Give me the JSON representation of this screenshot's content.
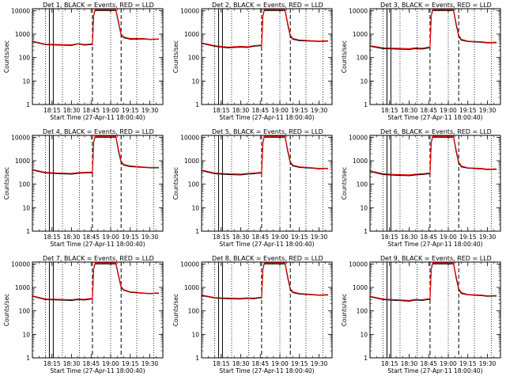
{
  "chart_data": {
    "type": "line",
    "y_log_scale": true,
    "ylim": [
      1,
      12000
    ],
    "ylabel": "Counts/sec",
    "xlabel": "Start Time (27-Apr-11 18:00:40)",
    "x_tick_labels": [
      "18:15",
      "18:30",
      "18:45",
      "19:00",
      "19:15",
      "19:30"
    ],
    "x_tick_minutes": [
      15,
      30,
      45,
      60,
      75,
      90
    ],
    "xlim_minutes": [
      0,
      100
    ],
    "y_tick_labels": [
      "1",
      "10",
      "100",
      "1000",
      "10000"
    ],
    "y_tick_values": [
      1,
      10,
      100,
      1000,
      10000
    ],
    "grid": false,
    "colors": {
      "events": "#000000",
      "lld": "#ff0000"
    },
    "markers": {
      "dotted_lines_minutes": [
        10,
        23,
        36,
        60,
        80,
        93
      ],
      "solid_lines_minutes": [
        13,
        16
      ],
      "dashed_lines_minutes": [
        46,
        68
      ]
    },
    "panels": [
      {
        "title": "Det 1, BLACK = Events, RED = LLD",
        "series": [
          {
            "name": "BLACK = Events",
            "x": [
              0,
              10,
              20,
              30,
              35,
              40,
              45,
              46,
              47,
              48,
              55,
              60,
              64,
              66,
              68,
              70,
              75,
              85,
              90,
              95,
              97
            ],
            "y": [
              480,
              350,
              340,
              330,
              380,
              340,
              360,
              350,
              6000,
              10000,
              10000,
              10000,
              10000,
              3000,
              900,
              700,
              600,
              620,
              580,
              600,
              600
            ]
          },
          {
            "name": "RED = LLD",
            "x": [
              0,
              10,
              20,
              30,
              35,
              40,
              45,
              46,
              47,
              48,
              55,
              60,
              64,
              66,
              68,
              70,
              75,
              85,
              90,
              95,
              97
            ],
            "y": [
              500,
              370,
              360,
              350,
              390,
              360,
              380,
              370,
              6500,
              11000,
              11000,
              11000,
              11000,
              3500,
              1000,
              750,
              650,
              650,
              600,
              620,
              620
            ]
          }
        ]
      },
      {
        "title": "Det 2, BLACK = Events, RED = LLD",
        "series": [
          {
            "name": "BLACK = Events",
            "x": [
              0,
              10,
              20,
              30,
              35,
              40,
              45,
              46,
              47,
              48,
              55,
              60,
              64,
              66,
              68,
              70,
              75,
              85,
              90,
              95,
              97
            ],
            "y": [
              400,
              300,
              260,
              280,
              270,
              300,
              320,
              310,
              6000,
              10000,
              10000,
              10000,
              10000,
              2500,
              800,
              600,
              520,
              500,
              480,
              500,
              500
            ]
          },
          {
            "name": "RED = LLD",
            "x": [
              0,
              10,
              20,
              30,
              35,
              40,
              45,
              46,
              47,
              48,
              55,
              60,
              64,
              66,
              68,
              70,
              75,
              85,
              90,
              95,
              97
            ],
            "y": [
              420,
              320,
              280,
              300,
              290,
              320,
              340,
              330,
              6500,
              11000,
              11000,
              11000,
              11000,
              3000,
              900,
              650,
              560,
              520,
              500,
              520,
              520
            ]
          }
        ]
      },
      {
        "title": "Det 3, BLACK = Events, RED = LLD",
        "series": [
          {
            "name": "BLACK = Events",
            "x": [
              0,
              10,
              20,
              30,
              35,
              40,
              45,
              46,
              47,
              48,
              55,
              60,
              64,
              66,
              68,
              70,
              75,
              85,
              90,
              95,
              97
            ],
            "y": [
              300,
              240,
              230,
              220,
              240,
              230,
              260,
              250,
              6000,
              10000,
              10000,
              10000,
              10000,
              2500,
              800,
              550,
              480,
              450,
              420,
              430,
              430
            ]
          },
          {
            "name": "RED = LLD",
            "x": [
              0,
              10,
              20,
              30,
              35,
              40,
              45,
              46,
              47,
              48,
              55,
              60,
              64,
              66,
              68,
              70,
              75,
              85,
              90,
              95,
              97
            ],
            "y": [
              320,
              260,
              250,
              240,
              260,
              250,
              280,
              270,
              6500,
              11000,
              11000,
              11000,
              11000,
              3000,
              900,
              600,
              500,
              470,
              440,
              450,
              450
            ]
          }
        ]
      },
      {
        "title": "Det 4, BLACK = Events, RED = LLD",
        "series": [
          {
            "name": "BLACK = Events",
            "x": [
              0,
              10,
              20,
              30,
              35,
              40,
              45,
              46,
              47,
              48,
              55,
              60,
              64,
              66,
              68,
              70,
              75,
              85,
              90,
              95,
              97
            ],
            "y": [
              400,
              300,
              280,
              270,
              290,
              300,
              310,
              300,
              6000,
              10000,
              10000,
              10000,
              10000,
              2500,
              850,
              650,
              560,
              520,
              500,
              500,
              500
            ]
          },
          {
            "name": "RED = LLD",
            "x": [
              0,
              10,
              20,
              30,
              35,
              40,
              45,
              46,
              47,
              48,
              55,
              60,
              64,
              66,
              68,
              70,
              75,
              85,
              90,
              95,
              97
            ],
            "y": [
              420,
              320,
              300,
              290,
              310,
              320,
              330,
              320,
              6500,
              11000,
              11000,
              11000,
              11000,
              3000,
              950,
              700,
              600,
              540,
              520,
              520,
              520
            ]
          }
        ]
      },
      {
        "title": "Det 5, BLACK = Events, RED = LLD",
        "series": [
          {
            "name": "BLACK = Events",
            "x": [
              0,
              10,
              20,
              30,
              35,
              40,
              45,
              46,
              47,
              48,
              55,
              60,
              64,
              66,
              68,
              70,
              75,
              85,
              90,
              95,
              97
            ],
            "y": [
              380,
              280,
              260,
              250,
              270,
              280,
              300,
              290,
              6000,
              10000,
              10000,
              10000,
              10000,
              2500,
              800,
              600,
              520,
              480,
              450,
              460,
              460
            ]
          },
          {
            "name": "RED = LLD",
            "x": [
              0,
              10,
              20,
              30,
              35,
              40,
              45,
              46,
              47,
              48,
              55,
              60,
              64,
              66,
              68,
              70,
              75,
              85,
              90,
              95,
              97
            ],
            "y": [
              400,
              300,
              280,
              270,
              290,
              300,
              320,
              310,
              6500,
              11000,
              11000,
              11000,
              11000,
              3000,
              900,
              650,
              550,
              500,
              470,
              480,
              480
            ]
          }
        ]
      },
      {
        "title": "Det 6, BLACK = Events, RED = LLD",
        "series": [
          {
            "name": "BLACK = Events",
            "x": [
              0,
              10,
              20,
              30,
              35,
              40,
              45,
              46,
              47,
              48,
              55,
              60,
              64,
              66,
              68,
              70,
              75,
              85,
              90,
              95,
              97
            ],
            "y": [
              350,
              260,
              240,
              230,
              250,
              260,
              280,
              270,
              6000,
              10000,
              10000,
              10000,
              10000,
              2500,
              800,
              550,
              480,
              450,
              420,
              430,
              430
            ]
          },
          {
            "name": "RED = LLD",
            "x": [
              0,
              10,
              20,
              30,
              35,
              40,
              45,
              46,
              47,
              48,
              55,
              60,
              64,
              66,
              68,
              70,
              75,
              85,
              90,
              95,
              97
            ],
            "y": [
              370,
              280,
              260,
              250,
              270,
              280,
              300,
              290,
              6500,
              11000,
              11000,
              11000,
              11000,
              3000,
              900,
              600,
              500,
              470,
              440,
              450,
              450
            ]
          }
        ]
      },
      {
        "title": "Det 7, BLACK = Events, RED = LLD",
        "series": [
          {
            "name": "BLACK = Events",
            "x": [
              0,
              10,
              20,
              30,
              35,
              40,
              45,
              46,
              47,
              48,
              55,
              60,
              64,
              66,
              68,
              70,
              75,
              85,
              90,
              95,
              97
            ],
            "y": [
              420,
              300,
              290,
              280,
              300,
              290,
              320,
              310,
              6000,
              10000,
              10000,
              10000,
              10000,
              3000,
              1000,
              750,
              620,
              560,
              540,
              560,
              560
            ]
          },
          {
            "name": "RED = LLD",
            "x": [
              0,
              10,
              20,
              30,
              35,
              40,
              45,
              46,
              47,
              48,
              55,
              60,
              64,
              66,
              68,
              70,
              75,
              85,
              90,
              95,
              97
            ],
            "y": [
              440,
              320,
              310,
              300,
              320,
              310,
              340,
              330,
              6500,
              11000,
              11000,
              11000,
              11000,
              3500,
              1100,
              800,
              650,
              580,
              560,
              580,
              580
            ]
          }
        ]
      },
      {
        "title": "Det 8, BLACK = Events, RED = LLD",
        "series": [
          {
            "name": "BLACK = Events",
            "x": [
              0,
              10,
              20,
              30,
              35,
              40,
              45,
              46,
              47,
              48,
              55,
              60,
              64,
              66,
              68,
              70,
              75,
              85,
              90,
              95,
              97
            ],
            "y": [
              450,
              350,
              330,
              320,
              340,
              330,
              360,
              350,
              6000,
              10000,
              10000,
              10000,
              10000,
              2500,
              800,
              600,
              520,
              480,
              460,
              470,
              470
            ]
          },
          {
            "name": "RED = LLD",
            "x": [
              0,
              10,
              20,
              30,
              35,
              40,
              45,
              46,
              47,
              48,
              55,
              60,
              64,
              66,
              68,
              70,
              75,
              85,
              90,
              95,
              97
            ],
            "y": [
              470,
              370,
              350,
              340,
              360,
              350,
              380,
              370,
              6500,
              11000,
              11000,
              11000,
              11000,
              3000,
              900,
              650,
              550,
              500,
              480,
              490,
              490
            ]
          }
        ]
      },
      {
        "title": "Det 9, BLACK = Events, RED = LLD",
        "series": [
          {
            "name": "BLACK = Events",
            "x": [
              0,
              10,
              20,
              30,
              35,
              40,
              45,
              46,
              47,
              48,
              55,
              60,
              64,
              66,
              68,
              70,
              75,
              85,
              90,
              95,
              97
            ],
            "y": [
              400,
              300,
              280,
              260,
              290,
              280,
              310,
              300,
              6000,
              10000,
              10000,
              10000,
              10000,
              2500,
              800,
              550,
              480,
              450,
              420,
              430,
              430
            ]
          },
          {
            "name": "RED = LLD",
            "x": [
              0,
              10,
              20,
              30,
              35,
              40,
              45,
              46,
              47,
              48,
              55,
              60,
              64,
              66,
              68,
              70,
              75,
              85,
              90,
              95,
              97
            ],
            "y": [
              420,
              320,
              300,
              280,
              310,
              300,
              330,
              320,
              6500,
              11000,
              11000,
              11000,
              11000,
              3000,
              900,
              600,
              500,
              470,
              440,
              450,
              450
            ]
          }
        ]
      }
    ]
  }
}
